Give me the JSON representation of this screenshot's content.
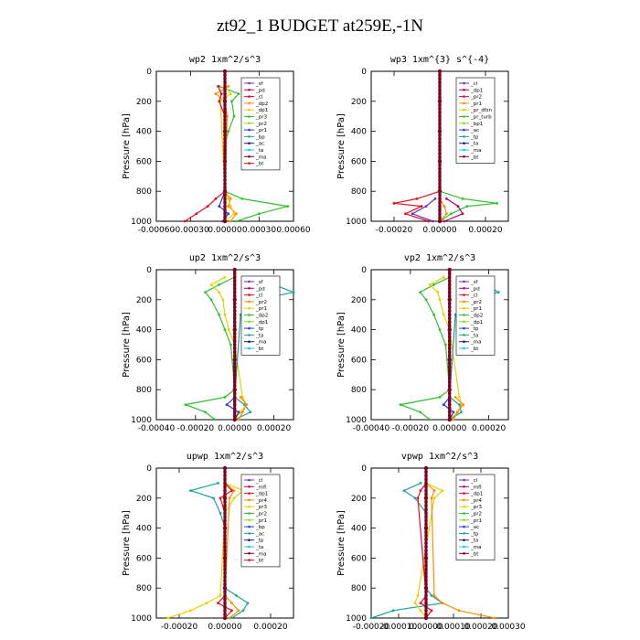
{
  "title": "zt92_1  BUDGET at259E,-1N",
  "colors": {
    "purple": "#7030c0",
    "blue": "#2040e0",
    "red": "#e01020",
    "magenta": "#c00060",
    "orange": "#ff8c00",
    "yellow": "#e8d000",
    "green": "#30c030",
    "lime": "#80e020",
    "teal": "#20a0a0",
    "darkblue": "#102080",
    "cyan": "#20c0e0",
    "maroon": "#800020"
  },
  "chart_data": [
    {
      "type": "line",
      "title": "wp2   1xm^2/s^3",
      "ylabel": "Pressure [hPa]",
      "xlim": [
        -0.0006,
        0.0006
      ],
      "ylim": [
        1000,
        0
      ],
      "xticks": [
        "-0.00060",
        "-0.00030",
        "0.00000",
        "0.00030",
        "0.00060"
      ],
      "xtick_values": [
        -0.0006,
        -0.0003,
        0,
        0.0003,
        0.0006
      ],
      "yticks": [
        "0",
        "200",
        "400",
        "600",
        "800",
        "1000"
      ],
      "legend": [
        "_sf",
        "_pd",
        "_cl",
        "_dp2",
        "_dp1",
        "_pr3",
        "_pr2",
        "_pr1",
        "_bp",
        "_ac",
        "_ta",
        "_ma",
        "_bt"
      ],
      "series": [
        {
          "name": "_pr1",
          "color": "green",
          "p": [
            100,
            150,
            200,
            300,
            400,
            500,
            800,
            850,
            900,
            950,
            1000
          ],
          "v": [
            -5e-05,
            0.00012,
            6e-05,
            8e-05,
            3e-05,
            0.0,
            0.0,
            0.00015,
            0.00055,
            0.0003,
            0.0001
          ]
        },
        {
          "name": "_pr2",
          "color": "orange",
          "p": [
            100,
            150,
            200,
            300,
            800,
            850,
            900,
            950,
            1000
          ],
          "v": [
            3e-05,
            -8e-05,
            0.0,
            2e-05,
            0.0,
            5e-05,
            3e-05,
            0.0001,
            5e-05
          ]
        },
        {
          "name": "_pr3",
          "color": "yellow",
          "p": [
            100,
            150,
            200,
            800,
            850,
            900,
            950,
            1000
          ],
          "v": [
            0.0,
            5e-05,
            -4e-05,
            0.0,
            3e-05,
            5e-05,
            8e-05,
            0.0
          ]
        },
        {
          "name": "_dp1",
          "color": "red",
          "p": [
            100,
            150,
            200,
            300,
            800,
            850,
            900,
            950,
            1000
          ],
          "v": [
            -6e-05,
            -3e-05,
            -5e-05,
            0.0,
            0.0,
            -8e-05,
            -0.00015,
            -0.00025,
            -0.00035
          ]
        },
        {
          "name": "_pd",
          "color": "blue",
          "p": [
            800,
            900,
            950,
            1000
          ],
          "v": [
            0.0,
            -5e-05,
            3e-05,
            -2e-05
          ]
        },
        {
          "name": "_bt",
          "color": "maroon",
          "p": [
            0,
            200,
            400,
            600,
            800,
            1000
          ],
          "v": [
            0,
            0,
            0,
            0,
            0,
            0
          ]
        }
      ]
    },
    {
      "type": "line",
      "title": "wp3   1xm^{3} s^{-4}",
      "ylabel": "Pressure [hPa]",
      "xlim": [
        -0.0003,
        0.0003
      ],
      "ylim": [
        1000,
        0
      ],
      "xticks": [
        "-0.00020",
        "0.00000",
        "0.00020"
      ],
      "xtick_values": [
        -0.0002,
        0,
        0.0002
      ],
      "yticks": [
        "0",
        "200",
        "400",
        "600",
        "800",
        "1000"
      ],
      "legend": [
        "_cl",
        "_dp1",
        "_pr2",
        "_pr1",
        "_pr_dfsn",
        "_pr_turb",
        "_bp1",
        "_ac",
        "_tp",
        "_ta",
        "_ma",
        "_bt"
      ],
      "series": [
        {
          "name": "_pr1",
          "color": "green",
          "p": [
            800,
            850,
            880,
            900,
            950,
            1000
          ],
          "v": [
            0.0,
            0.0001,
            0.00025,
            0.00012,
            5e-05,
            0.0
          ]
        },
        {
          "name": "_dp1",
          "color": "red",
          "p": [
            800,
            850,
            880,
            900,
            950,
            1000
          ],
          "v": [
            0.0,
            -0.0001,
            -0.0002,
            -8e-05,
            -0.00015,
            -5e-05
          ]
        },
        {
          "name": "_pr2",
          "color": "magenta",
          "p": [
            850,
            900,
            950,
            1000
          ],
          "v": [
            3e-05,
            8e-05,
            0.0001,
            2e-05
          ]
        },
        {
          "name": "_cl",
          "color": "purple",
          "p": [
            850,
            900,
            950,
            1000
          ],
          "v": [
            -2e-05,
            -6e-05,
            -0.00012,
            -3e-05
          ]
        },
        {
          "name": "_pr_dfsn",
          "color": "orange",
          "p": [
            850,
            900,
            950,
            1000
          ],
          "v": [
            0.0,
            2e-05,
            3e-05,
            0.0
          ]
        },
        {
          "name": "_bt",
          "color": "maroon",
          "p": [
            0,
            200,
            400,
            600,
            800,
            1000
          ],
          "v": [
            0,
            0,
            0,
            0,
            0,
            0
          ]
        }
      ]
    },
    {
      "type": "line",
      "title": "up2   1xm^2/s^3",
      "ylabel": "Pressure [hPa]",
      "xlim": [
        -0.0004,
        0.0003
      ],
      "ylim": [
        1000,
        0
      ],
      "xticks": [
        "-0.00040",
        "-0.00020",
        "0.00000",
        "0.00020"
      ],
      "xtick_values": [
        -0.0004,
        -0.0002,
        0,
        0.0002
      ],
      "yticks": [
        "0",
        "200",
        "400",
        "600",
        "800",
        "1000"
      ],
      "legend": [
        "_sf",
        "_pd",
        "_cl",
        "_pr2",
        "_pr1",
        "_dp2",
        "_dp1",
        "_tp",
        "_ta",
        "_ma",
        "_bt"
      ],
      "series": [
        {
          "name": "_pr1",
          "color": "green",
          "p": [
            50,
            100,
            150,
            200,
            300,
            400,
            500,
            800,
            850,
            900,
            950,
            1000
          ],
          "v": [
            0.0,
            -8e-05,
            -0.00015,
            -0.00012,
            -8e-05,
            -5e-05,
            -2e-05,
            0.0,
            -5e-05,
            -0.00025,
            -0.00015,
            -0.0001
          ]
        },
        {
          "name": "_pr2",
          "color": "yellow",
          "p": [
            50,
            100,
            150,
            200,
            300,
            400,
            500,
            850,
            900,
            950,
            1000
          ],
          "v": [
            -5e-05,
            -0.00012,
            -8e-05,
            -6e-05,
            -5e-05,
            -3e-05,
            0.0,
            4e-05,
            6e-05,
            3e-05,
            0.0
          ]
        },
        {
          "name": "_pd",
          "color": "teal",
          "p": [
            50,
            100,
            150,
            200,
            300,
            850,
            900,
            950,
            1000
          ],
          "v": [
            0.0001,
            0.0002,
            0.0003,
            0.00012,
            3e-05,
            0.0,
            5e-05,
            8e-05,
            0.0
          ]
        },
        {
          "name": "_cl",
          "color": "orange",
          "p": [
            850,
            900,
            950,
            1000
          ],
          "v": [
            3e-05,
            6e-05,
            4e-05,
            2e-05
          ]
        },
        {
          "name": "_dp1",
          "color": "blue",
          "p": [
            850,
            900,
            950,
            1000
          ],
          "v": [
            0.0,
            -4e-05,
            2e-05,
            0.0
          ]
        },
        {
          "name": "_bt",
          "color": "maroon",
          "p": [
            0,
            200,
            400,
            600,
            800,
            1000
          ],
          "v": [
            0,
            0,
            0,
            0,
            0,
            0
          ]
        }
      ]
    },
    {
      "type": "line",
      "title": "vp2   1xm^2/s^3",
      "ylabel": "Pressure [hPa]",
      "xlim": [
        -0.0004,
        0.0003
      ],
      "ylim": [
        1000,
        0
      ],
      "xticks": [
        "-0.00040",
        "-0.00020",
        "0.00000",
        "0.00020"
      ],
      "xtick_values": [
        -0.0004,
        -0.0002,
        0,
        0.0002
      ],
      "yticks": [
        "0",
        "200",
        "400",
        "600",
        "800",
        "1000"
      ],
      "legend": [
        "_sf",
        "_pd",
        "_cl",
        "_pr2",
        "_pr1",
        "_dp2",
        "_dp1",
        "_tp",
        "_ta",
        "_ma",
        "_bt"
      ],
      "series": [
        {
          "name": "_pr1",
          "color": "green",
          "p": [
            50,
            100,
            150,
            200,
            300,
            400,
            500,
            800,
            850,
            900,
            950,
            1000
          ],
          "v": [
            0.0,
            -8e-05,
            -0.00015,
            -0.00012,
            -8e-05,
            -5e-05,
            -2e-05,
            0.0,
            -5e-05,
            -0.00025,
            -0.00015,
            -0.0001
          ]
        },
        {
          "name": "_pr2",
          "color": "yellow",
          "p": [
            50,
            100,
            150,
            200,
            300,
            400,
            850,
            900,
            950,
            1000
          ],
          "v": [
            -3e-05,
            -0.0001,
            -6e-05,
            -5e-05,
            -3e-05,
            0.0,
            5e-05,
            6e-05,
            4e-05,
            0.0
          ]
        },
        {
          "name": "_pd",
          "color": "teal",
          "p": [
            50,
            100,
            150,
            200,
            300,
            850,
            900,
            950,
            1000
          ],
          "v": [
            8e-05,
            0.00018,
            0.00025,
            0.0001,
            3e-05,
            0.0,
            5e-05,
            6e-05,
            0.0
          ]
        },
        {
          "name": "_cl",
          "color": "orange",
          "p": [
            850,
            900,
            950,
            1000
          ],
          "v": [
            3e-05,
            7e-05,
            4e-05,
            2e-05
          ]
        },
        {
          "name": "_dp1",
          "color": "blue",
          "p": [
            850,
            900,
            950,
            1000
          ],
          "v": [
            0.0,
            -3e-05,
            2e-05,
            0.0
          ]
        },
        {
          "name": "_bt",
          "color": "maroon",
          "p": [
            0,
            200,
            400,
            600,
            800,
            1000
          ],
          "v": [
            0,
            0,
            0,
            0,
            0,
            0
          ]
        }
      ]
    },
    {
      "type": "line",
      "title": "upwp   1xm^2/s^3",
      "ylabel": "Pressure [hPa]",
      "xlim": [
        -0.0003,
        0.0003
      ],
      "ylim": [
        1000,
        0
      ],
      "xticks": [
        "-0.00020",
        "0.00000",
        "0.00020"
      ],
      "xtick_values": [
        -0.0002,
        0,
        0.0002
      ],
      "yticks": [
        "0",
        "200",
        "400",
        "600",
        "800",
        "1000"
      ],
      "legend": [
        "_cl",
        "_mfl",
        "_dp1",
        "_pr4",
        "_pr3",
        "_pr2",
        "_pr1",
        "_bp",
        "_ac",
        "_tp",
        "_ta",
        "_ma",
        "_bt"
      ],
      "series": [
        {
          "name": "_tp",
          "color": "teal",
          "p": [
            100,
            150,
            200,
            300,
            400,
            800,
            850,
            900,
            950,
            1000
          ],
          "v": [
            -3e-05,
            -0.00015,
            -5e-05,
            -2e-05,
            0.0,
            0.0,
            5e-05,
            0.0001,
            8e-05,
            3e-05
          ]
        },
        {
          "name": "_pr2",
          "color": "yellow",
          "p": [
            100,
            150,
            200,
            300,
            850,
            900,
            950,
            1000
          ],
          "v": [
            0.0,
            8e-05,
            4e-05,
            0.0,
            -2e-05,
            -8e-05,
            -0.00015,
            -0.00025
          ]
        },
        {
          "name": "_pr1",
          "color": "orange",
          "p": [
            100,
            150,
            200,
            850,
            900,
            950,
            1000
          ],
          "v": [
            0.0,
            4e-05,
            2e-05,
            0.0,
            3e-05,
            6e-05,
            2e-05
          ]
        },
        {
          "name": "_dp1",
          "color": "red",
          "p": [
            100,
            150,
            200,
            300,
            850,
            900,
            950,
            1000
          ],
          "v": [
            0.0,
            3e-05,
            -2e-05,
            0.0,
            0.0,
            -3e-05,
            3e-05,
            0.0
          ]
        },
        {
          "name": "_bt",
          "color": "maroon",
          "p": [
            0,
            200,
            400,
            600,
            800,
            1000
          ],
          "v": [
            0,
            0,
            0,
            0,
            0,
            0
          ]
        }
      ]
    },
    {
      "type": "line",
      "title": "vpwp   1xm^2/s^3",
      "ylabel": "Pressure [hPa]",
      "xlim": [
        -0.0002,
        0.0003
      ],
      "ylim": [
        1000,
        0
      ],
      "xticks": [
        "-0.00020",
        "-0.00010",
        "0.00000",
        "0.00010",
        "0.00020",
        "0.00030"
      ],
      "xtick_values": [
        -0.0002,
        -0.0001,
        0,
        0.0001,
        0.0002,
        0.0003
      ],
      "yticks": [
        "0",
        "200",
        "400",
        "600",
        "800",
        "1000"
      ],
      "legend": [
        "_cl",
        "_mfl",
        "_dp1",
        "_pr4",
        "_pr3",
        "_pr2",
        "_pr1",
        "_ac",
        "_tp",
        "_ta",
        "_ma",
        "_bt"
      ],
      "series": [
        {
          "name": "_tp",
          "color": "teal",
          "p": [
            100,
            150,
            200,
            300,
            800,
            850,
            900,
            950,
            1000
          ],
          "v": [
            -2e-05,
            -8e-05,
            -4e-05,
            0.0,
            0.0,
            2e-05,
            6e-05,
            -0.00012,
            -0.0002
          ]
        },
        {
          "name": "_pr2",
          "color": "yellow",
          "p": [
            100,
            150,
            200,
            850,
            900,
            950,
            1000
          ],
          "v": [
            0.0,
            6e-05,
            3e-05,
            -3e-05,
            -4e-05,
            -2e-05,
            0.0
          ]
        },
        {
          "name": "_pr1",
          "color": "orange",
          "p": [
            100,
            150,
            200,
            850,
            900,
            950,
            1000
          ],
          "v": [
            0.0,
            3e-05,
            2e-05,
            3e-05,
            6e-05,
            0.00012,
            0.00025
          ]
        },
        {
          "name": "_dp1",
          "color": "red",
          "p": [
            100,
            150,
            200,
            850,
            900,
            950,
            1000
          ],
          "v": [
            0.0,
            -2e-05,
            -3e-05,
            0.0,
            -2e-05,
            2e-05,
            0.0
          ]
        },
        {
          "name": "_bt",
          "color": "maroon",
          "p": [
            0,
            200,
            400,
            600,
            800,
            1000
          ],
          "v": [
            0,
            0,
            0,
            0,
            0,
            0
          ]
        }
      ]
    }
  ]
}
